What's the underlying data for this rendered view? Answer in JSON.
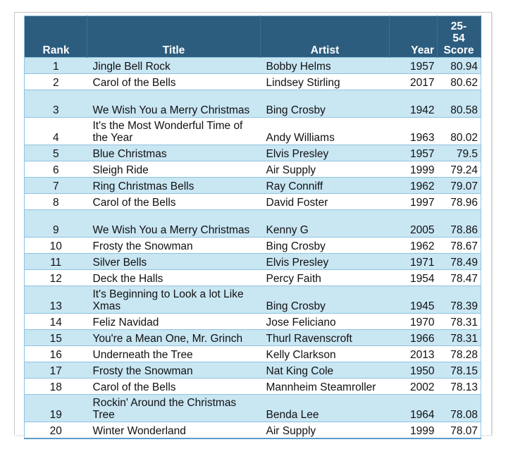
{
  "headers": {
    "rank": "Rank",
    "title": "Title",
    "artist": "Artist",
    "year": "Year",
    "score_line1": "25-",
    "score_line2": "54",
    "score_line3": "Score"
  },
  "rows": [
    {
      "rank": "1",
      "title": "Jingle Bell Rock",
      "artist": "Bobby Helms",
      "year": "1957",
      "score": "80.94"
    },
    {
      "rank": "2",
      "title": "Carol of the Bells",
      "artist": "Lindsey Stirling",
      "year": "2017",
      "score": "80.62"
    },
    {
      "rank": "3",
      "title": "We Wish You a Merry Christmas",
      "artist": "Bing Crosby",
      "year": "1942",
      "score": "80.58"
    },
    {
      "rank": "4",
      "title": "It's the Most Wonderful Time of the Year",
      "artist": "Andy Williams",
      "year": "1963",
      "score": "80.02"
    },
    {
      "rank": "5",
      "title": "Blue Christmas",
      "artist": "Elvis Presley",
      "year": "1957",
      "score": "79.5"
    },
    {
      "rank": "6",
      "title": "Sleigh Ride",
      "artist": "Air Supply",
      "year": "1999",
      "score": "79.24"
    },
    {
      "rank": "7",
      "title": "Ring Christmas Bells",
      "artist": "Ray Conniff",
      "year": "1962",
      "score": "79.07"
    },
    {
      "rank": "8",
      "title": "Carol of the Bells",
      "artist": "David Foster",
      "year": "1997",
      "score": "78.96"
    },
    {
      "rank": "9",
      "title": "We Wish You a Merry Christmas",
      "artist": "Kenny G",
      "year": "2005",
      "score": "78.86"
    },
    {
      "rank": "10",
      "title": "Frosty the Snowman",
      "artist": "Bing Crosby",
      "year": "1962",
      "score": "78.67"
    },
    {
      "rank": "11",
      "title": "Silver Bells",
      "artist": "Elvis Presley",
      "year": "1971",
      "score": "78.49"
    },
    {
      "rank": "12",
      "title": "Deck the Halls",
      "artist": "Percy Faith",
      "year": "1954",
      "score": "78.47"
    },
    {
      "rank": "13",
      "title": "It's Beginning to Look a lot Like Xmas",
      "artist": "Bing Crosby",
      "year": "1945",
      "score": "78.39"
    },
    {
      "rank": "14",
      "title": "Feliz Navidad",
      "artist": "Jose Feliciano",
      "year": "1970",
      "score": "78.31"
    },
    {
      "rank": "15",
      "title": "You're a Mean One, Mr. Grinch",
      "artist": "Thurl Ravenscroft",
      "year": "1966",
      "score": "78.31"
    },
    {
      "rank": "16",
      "title": "Underneath the Tree",
      "artist": "Kelly Clarkson",
      "year": "2013",
      "score": "78.28"
    },
    {
      "rank": "17",
      "title": "Frosty the Snowman",
      "artist": "Nat King Cole",
      "year": "1950",
      "score": "78.15"
    },
    {
      "rank": "18",
      "title": "Carol of the Bells",
      "artist": "Mannheim Steamroller",
      "year": "2002",
      "score": "78.13"
    },
    {
      "rank": "19",
      "title": "Rockin' Around the Christmas Tree",
      "artist": "Benda Lee",
      "year": "1964",
      "score": "78.08"
    },
    {
      "rank": "20",
      "title": "Winter Wonderland",
      "artist": "Air Supply",
      "year": "1999",
      "score": "78.07"
    }
  ]
}
